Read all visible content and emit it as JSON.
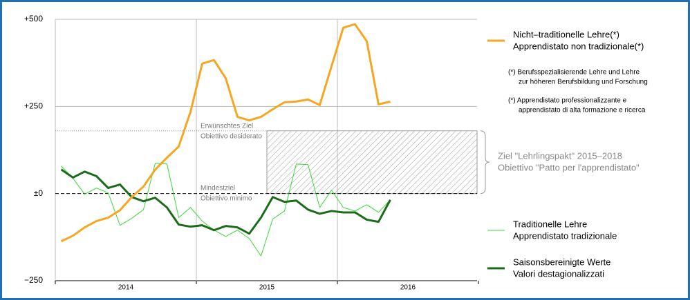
{
  "chart_data": {
    "type": "line",
    "x_labels": [
      "2014",
      "2015",
      "2016"
    ],
    "ylim": [
      -250,
      500
    ],
    "yticks": [
      {
        "value": 500,
        "label": "+500"
      },
      {
        "value": 250,
        "label": "+250"
      },
      {
        "value": 0,
        "label": "±0"
      },
      {
        "value": -250,
        "label": "−250"
      }
    ],
    "grid": true,
    "series": [
      {
        "name": [
          "Nicht–traditionelle Lehre(*)",
          "Apprendistato non tradizionale(*)"
        ],
        "color": "#f5a623",
        "width": 3,
        "values": [
          -137,
          -121,
          -97,
          -79,
          -69,
          -48,
          -10,
          20,
          69,
          103,
          135,
          234,
          373,
          383,
          331,
          220,
          210,
          220,
          242,
          262,
          264,
          270,
          254,
          365,
          476,
          486,
          437,
          256,
          264
        ]
      },
      {
        "name": [
          "Traditionelle Lehre",
          "Apprendistato tradizionale"
        ],
        "color": "#33dd33",
        "width": 1,
        "values": [
          79,
          44,
          -2,
          16,
          2,
          -91,
          -71,
          -46,
          87,
          85,
          -69,
          -40,
          -79,
          -105,
          -123,
          -105,
          -129,
          -179,
          -73,
          -50,
          85,
          83,
          -40,
          10,
          -40,
          -50,
          -32,
          -54,
          -18
        ]
      },
      {
        "name": [
          "Saisonsbereinigte Werte",
          "Valori destagionalizzati"
        ],
        "color": "#1a6b1a",
        "width": 3,
        "values": [
          69,
          46,
          63,
          50,
          16,
          26,
          -10,
          -22,
          -12,
          -40,
          -89,
          -95,
          -91,
          -105,
          -93,
          -97,
          -115,
          -69,
          -10,
          -24,
          -20,
          -46,
          -58,
          -50,
          -54,
          -54,
          -75,
          -81,
          -18
        ]
      }
    ],
    "desired_target": {
      "value": 180,
      "label": [
        "Erwünschtes Ziel",
        "Obiettivo desiderato"
      ]
    },
    "minimum_target": {
      "value": 0,
      "label": [
        "Mindestziel",
        "Obiettivo minimo"
      ]
    },
    "goal_label": [
      "Ziel \"Lehrlingspakt\" 2015–2018",
      "Obiettivo \"Patto per l'apprendistato\""
    ],
    "notes": [
      [
        "(*) Berufsspezialisierende Lehre und Lehre",
        "zur höheren Berufsbildung und Forschung"
      ],
      [
        "(*) Apprendistato professionalizzante e",
        "apprendistato di alta formazione e ricerca"
      ]
    ]
  }
}
